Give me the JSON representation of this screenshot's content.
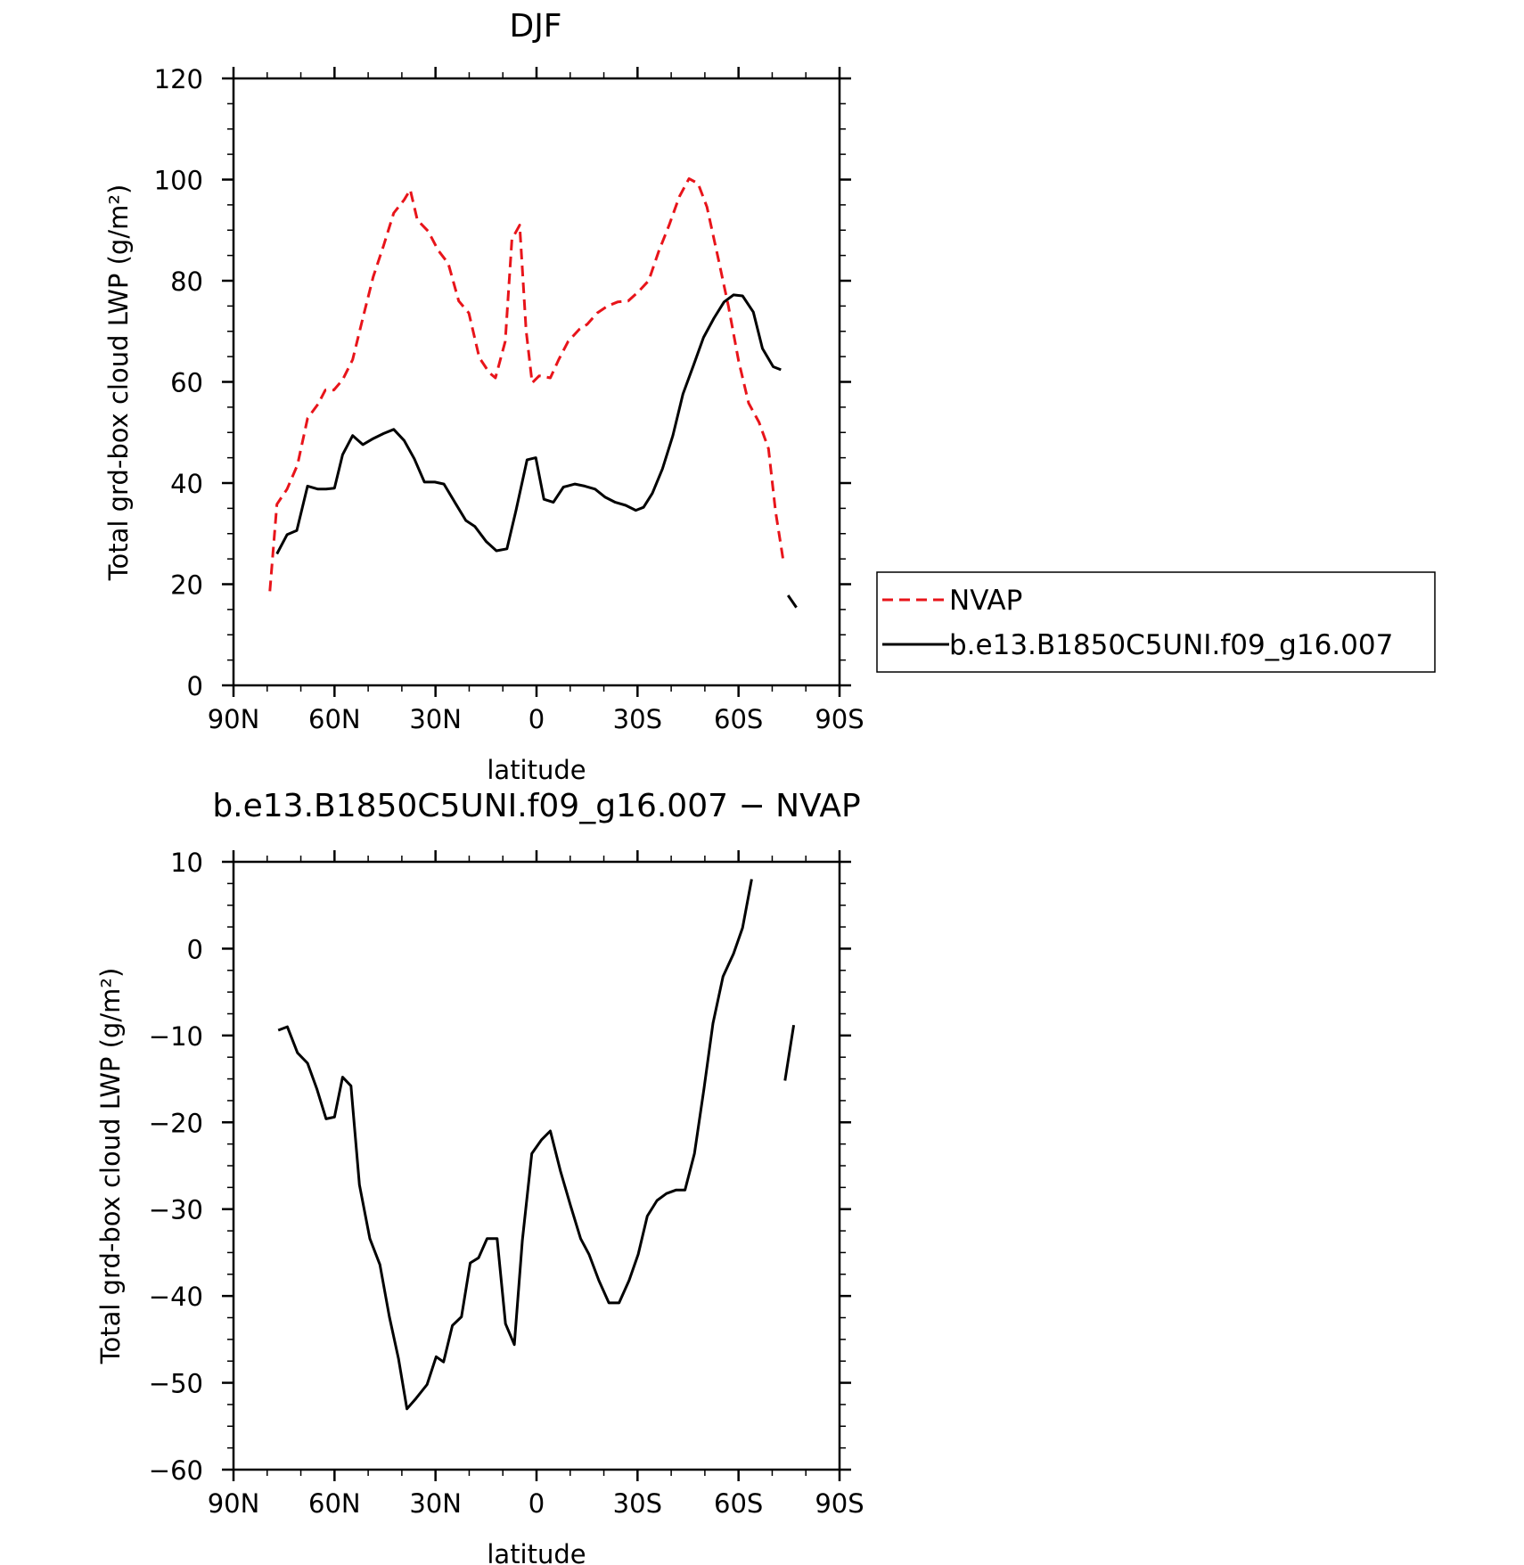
{
  "chart_data": [
    {
      "type": "line",
      "title": "DJF",
      "xlabel": "latitude",
      "ylabel": "Total grd-box cloud LWP (g/m²)",
      "xlim": [
        90,
        -90
      ],
      "ylim": [
        0,
        120
      ],
      "x_ticks": [
        90,
        60,
        30,
        0,
        -30,
        -60,
        -90
      ],
      "x_tick_labels": [
        "90N",
        "60N",
        "30N",
        "0",
        "30S",
        "60S",
        "90S"
      ],
      "y_ticks": [
        0,
        20,
        40,
        60,
        80,
        100,
        120
      ],
      "y_tick_labels": [
        "0",
        "20",
        "40",
        "60",
        "80",
        "100",
        "120"
      ],
      "legend_position": "right, outside plot",
      "grid": false,
      "series": [
        {
          "name": "NVAP",
          "color": "#e8141a",
          "dash": "dashed",
          "segments": [
            [
              [
                79.2,
                18.6
              ],
              [
                77.1,
                35.8
              ],
              [
                74.1,
                38.8
              ],
              [
                71.0,
                43.6
              ],
              [
                68.0,
                52.8
              ],
              [
                64.9,
                55.6
              ],
              [
                62.7,
                58.4
              ],
              [
                60.2,
                58.4
              ],
              [
                57.6,
                60.4
              ],
              [
                54.6,
                64.4
              ],
              [
                51.6,
                72.6
              ],
              [
                48.5,
                80.8
              ],
              [
                45.4,
                87.0
              ],
              [
                42.4,
                93.4
              ],
              [
                39.3,
                96.0
              ],
              [
                37.5,
                98.0
              ],
              [
                35.4,
                92.0
              ],
              [
                32.2,
                89.8
              ],
              [
                29.2,
                86.0
              ],
              [
                26.2,
                83.4
              ],
              [
                23.1,
                76.0
              ],
              [
                20.1,
                73.6
              ],
              [
                17.0,
                64.8
              ],
              [
                14.0,
                61.8
              ],
              [
                12.2,
                60.8
              ],
              [
                9.3,
                68.0
              ],
              [
                7.3,
                88.2
              ],
              [
                5.0,
                91.0
              ],
              [
                3.1,
                70.2
              ],
              [
                1.3,
                59.8
              ],
              [
                -0.8,
                61.2
              ],
              [
                -4.1,
                60.8
              ],
              [
                -6.6,
                64.4
              ],
              [
                -9.4,
                68.0
              ],
              [
                -12.7,
                70.4
              ],
              [
                -15.1,
                71.4
              ],
              [
                -18.0,
                73.6
              ],
              [
                -21.1,
                75.0
              ],
              [
                -24.1,
                75.8
              ],
              [
                -27.2,
                76.0
              ],
              [
                -30.2,
                77.8
              ],
              [
                -33.3,
                80.0
              ],
              [
                -36.3,
                85.8
              ],
              [
                -39.4,
                91.0
              ],
              [
                -42.4,
                96.6
              ],
              [
                -45.3,
                100.2
              ],
              [
                -48.0,
                99.2
              ],
              [
                -50.6,
                94.6
              ],
              [
                -54.1,
                84.0
              ],
              [
                -57.0,
                75.0
              ],
              [
                -60.0,
                64.2
              ],
              [
                -63.0,
                55.8
              ],
              [
                -66.1,
                52.0
              ],
              [
                -68.9,
                46.8
              ],
              [
                -71.0,
                34.4
              ],
              [
                -73.4,
                24.2
              ]
            ]
          ]
        },
        {
          "name": "b.e13.B1850C5UNI.f09_g16.007",
          "color": "#000000",
          "dash": "solid",
          "segments": [
            [
              [
                77.1,
                26.0
              ],
              [
                74.1,
                29.8
              ],
              [
                71.2,
                30.6
              ],
              [
                68.0,
                39.4
              ],
              [
                64.9,
                38.8
              ],
              [
                62.5,
                38.8
              ],
              [
                60.0,
                39.0
              ],
              [
                57.6,
                45.6
              ],
              [
                54.6,
                49.4
              ],
              [
                51.6,
                47.6
              ],
              [
                48.5,
                48.8
              ],
              [
                45.4,
                49.8
              ],
              [
                42.4,
                50.6
              ],
              [
                39.3,
                48.4
              ],
              [
                36.3,
                44.8
              ],
              [
                33.3,
                40.2
              ],
              [
                30.2,
                40.2
              ],
              [
                27.5,
                39.8
              ],
              [
                24.1,
                36.0
              ],
              [
                21.0,
                32.6
              ],
              [
                18.3,
                31.4
              ],
              [
                14.9,
                28.4
              ],
              [
                11.9,
                26.6
              ],
              [
                8.8,
                27.0
              ],
              [
                6.1,
                34.6
              ],
              [
                2.8,
                44.6
              ],
              [
                0.2,
                45.0
              ],
              [
                -2.2,
                36.8
              ],
              [
                -5.0,
                36.2
              ],
              [
                -8.0,
                39.2
              ],
              [
                -11.4,
                39.8
              ],
              [
                -14.3,
                39.4
              ],
              [
                -17.4,
                38.8
              ],
              [
                -20.4,
                37.2
              ],
              [
                -23.4,
                36.2
              ],
              [
                -26.5,
                35.6
              ],
              [
                -29.5,
                34.6
              ],
              [
                -31.8,
                35.2
              ],
              [
                -34.4,
                38.0
              ],
              [
                -37.4,
                42.8
              ],
              [
                -40.5,
                49.4
              ],
              [
                -43.5,
                57.6
              ],
              [
                -46.6,
                63.2
              ],
              [
                -49.6,
                68.8
              ],
              [
                -52.7,
                72.6
              ],
              [
                -55.7,
                75.8
              ],
              [
                -58.5,
                77.2
              ],
              [
                -61.2,
                77.0
              ],
              [
                -64.4,
                73.8
              ],
              [
                -67.1,
                66.6
              ],
              [
                -70.3,
                63.0
              ],
              [
                -72.6,
                62.4
              ]
            ],
            [
              [
                -74.7,
                17.8
              ],
              [
                -77.2,
                15.4
              ]
            ]
          ]
        }
      ]
    },
    {
      "type": "line",
      "title": "b.e13.B1850C5UNI.f09_g16.007 − NVAP",
      "xlabel": "latitude",
      "ylabel": "Total grd-box cloud LWP (g/m²)",
      "xlim": [
        90,
        -90
      ],
      "ylim": [
        -60,
        10
      ],
      "x_ticks": [
        90,
        60,
        30,
        0,
        -30,
        -60,
        -90
      ],
      "x_tick_labels": [
        "90N",
        "60N",
        "30N",
        "0",
        "30S",
        "60S",
        "90S"
      ],
      "y_ticks": [
        10,
        0,
        -10,
        -20,
        -30,
        -40,
        -50,
        -60
      ],
      "y_tick_labels": [
        "10",
        "0",
        "−10",
        "−20",
        "−30",
        "−40",
        "−50",
        "−60"
      ],
      "grid": false,
      "series": [
        {
          "color": "#000000",
          "dash": "solid",
          "segments": [
            [
              [
                76.7,
                -9.4
              ],
              [
                74.0,
                -9.0
              ],
              [
                71.0,
                -12.0
              ],
              [
                68.0,
                -13.2
              ],
              [
                65.2,
                -16.2
              ],
              [
                62.5,
                -19.6
              ],
              [
                60.0,
                -19.4
              ],
              [
                57.6,
                -14.8
              ],
              [
                55.1,
                -15.8
              ],
              [
                52.6,
                -27.2
              ],
              [
                49.5,
                -33.4
              ],
              [
                46.5,
                -36.4
              ],
              [
                43.7,
                -42.4
              ],
              [
                41.0,
                -47.2
              ],
              [
                38.5,
                -53.0
              ],
              [
                35.8,
                -51.8
              ],
              [
                32.5,
                -50.2
              ],
              [
                29.8,
                -47.0
              ],
              [
                27.6,
                -47.6
              ],
              [
                25.0,
                -43.4
              ],
              [
                22.3,
                -42.4
              ],
              [
                19.7,
                -36.2
              ],
              [
                17.2,
                -35.6
              ],
              [
                14.7,
                -33.4
              ],
              [
                11.7,
                -33.4
              ],
              [
                9.2,
                -43.2
              ],
              [
                6.6,
                -45.6
              ],
              [
                4.2,
                -33.6
              ],
              [
                1.4,
                -23.6
              ],
              [
                -1.5,
                -22.0
              ],
              [
                -4.1,
                -21.0
              ],
              [
                -7.1,
                -25.6
              ],
              [
                -10.1,
                -29.6
              ],
              [
                -13.1,
                -33.4
              ],
              [
                -15.6,
                -35.2
              ],
              [
                -18.5,
                -38.2
              ],
              [
                -21.5,
                -40.8
              ],
              [
                -24.5,
                -40.8
              ],
              [
                -27.5,
                -38.2
              ],
              [
                -30.2,
                -35.2
              ],
              [
                -32.9,
                -30.8
              ],
              [
                -35.8,
                -29.0
              ],
              [
                -38.6,
                -28.2
              ],
              [
                -41.4,
                -27.8
              ],
              [
                -44.1,
                -27.8
              ],
              [
                -46.9,
                -23.6
              ],
              [
                -49.7,
                -16.2
              ],
              [
                -52.4,
                -8.6
              ],
              [
                -55.4,
                -3.2
              ],
              [
                -58.5,
                -0.6
              ],
              [
                -61.2,
                2.4
              ],
              [
                -63.9,
                8.0
              ]
            ],
            [
              [
                -73.8,
                -15.2
              ],
              [
                -76.4,
                -8.8
              ]
            ]
          ]
        }
      ]
    }
  ]
}
